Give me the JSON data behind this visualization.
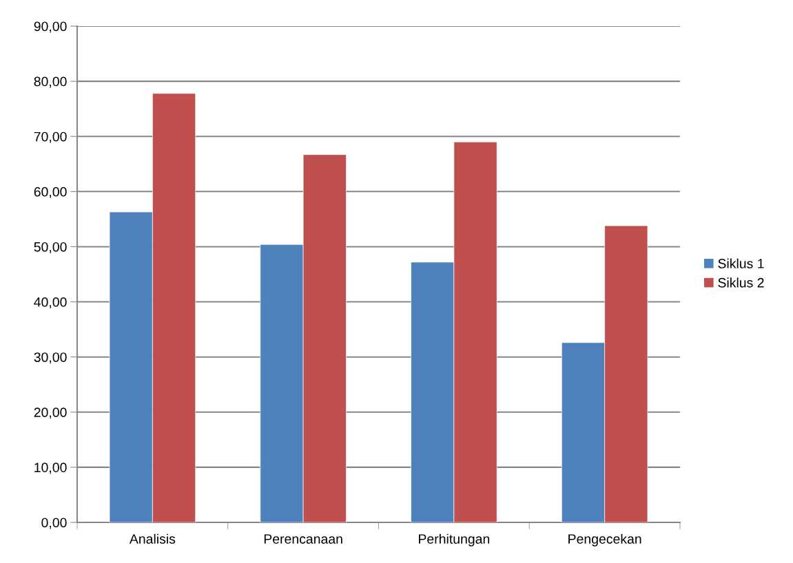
{
  "chart_data": {
    "type": "bar",
    "categories": [
      "Analisis",
      "Perencanaan",
      "Perhitungan",
      "Pengecekan"
    ],
    "series": [
      {
        "name": "Siklus 1",
        "color": "#4f81bd",
        "values": [
          56.3,
          50.4,
          47.2,
          32.6
        ]
      },
      {
        "name": "Siklus 2",
        "color": "#c0504d",
        "values": [
          77.8,
          66.7,
          69.0,
          53.8
        ]
      }
    ],
    "ylim": [
      0,
      90
    ],
    "yticks": [
      {
        "value": 0,
        "label": "0,00"
      },
      {
        "value": 10,
        "label": "10,00"
      },
      {
        "value": 20,
        "label": "20,00"
      },
      {
        "value": 30,
        "label": "30,00"
      },
      {
        "value": 40,
        "label": "40,00"
      },
      {
        "value": 50,
        "label": "50,00"
      },
      {
        "value": 60,
        "label": "60,00"
      },
      {
        "value": 70,
        "label": "70,00"
      },
      {
        "value": 80,
        "label": "80,00"
      },
      {
        "value": 90,
        "label": "90,00"
      }
    ],
    "grid": "y",
    "legend": "right"
  }
}
